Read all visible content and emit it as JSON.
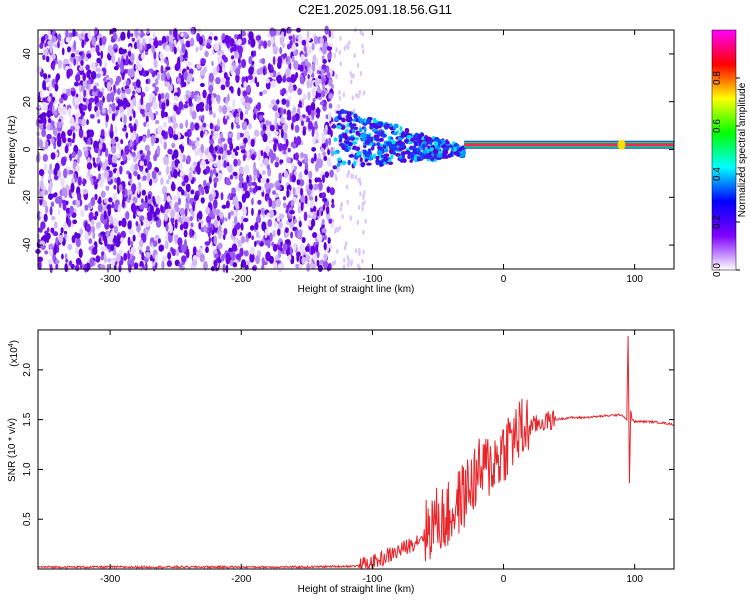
{
  "title": "C2E1.2025.091.18.56.G11",
  "chart_data": [
    {
      "type": "heatmap",
      "title": "C2E1.2025.091.18.56.G11",
      "xlabel": "Height of straight line (km)",
      "ylabel": "Frequency (Hz)",
      "xlim": [
        -355,
        130
      ],
      "ylim": [
        -50,
        50
      ],
      "xticks": [
        -300,
        -200,
        -100,
        0,
        100
      ],
      "yticks": [
        -40,
        -20,
        0,
        20,
        40
      ],
      "colorbar": {
        "label": "Normalized spectral amplitude",
        "range": [
          0,
          1
        ],
        "ticks": [
          "0.0",
          "0.2",
          "0.4",
          "0.6",
          "0.8"
        ],
        "colors": [
          "#ffffff",
          "#7f00ff",
          "#0000ff",
          "#00ffff",
          "#00ff00",
          "#ffff00",
          "#ff0000",
          "#ff00ff"
        ]
      },
      "description_features": {
        "noise_region_x": [
          -355,
          -130
        ],
        "transition_region_x": [
          -130,
          -30
        ],
        "tone_line_x": [
          -30,
          130
        ],
        "tone_frequency_hz": 2,
        "spike_x": 90
      }
    },
    {
      "type": "line",
      "xlabel": "Height of straight line (km)",
      "ylabel": "SNR (10 * v/v)",
      "y_multiplier_label": "(x10",
      "y_multiplier_exp": "4",
      "y_multiplier_close": ")",
      "xlim": [
        -355,
        130
      ],
      "ylim": [
        0,
        2.4
      ],
      "xticks": [
        -300,
        -200,
        -100,
        0,
        100
      ],
      "yticks": [
        0.5,
        1.0,
        1.5,
        2.0
      ],
      "ytick_labels": [
        "0.5",
        "1.0",
        "1.5",
        "2.0"
      ],
      "color": "#e8262a",
      "series": [
        {
          "x": [
            -355,
            -300,
            -250,
            -200,
            -150,
            -110,
            -100,
            -90,
            -80,
            -70,
            -60,
            -55,
            -50,
            -45,
            -40,
            -35,
            -30,
            -25,
            -20,
            -15,
            -10,
            -5,
            0,
            5,
            10,
            15,
            20,
            25,
            30,
            40,
            50,
            60,
            70,
            80,
            90,
            94,
            95,
            96,
            97,
            98,
            100,
            110,
            120,
            130
          ],
          "values": [
            0.02,
            0.02,
            0.02,
            0.02,
            0.02,
            0.03,
            0.06,
            0.12,
            0.18,
            0.25,
            0.35,
            0.45,
            0.5,
            0.5,
            0.55,
            0.65,
            0.75,
            0.85,
            0.95,
            1.0,
            1.05,
            1.1,
            1.2,
            1.3,
            1.35,
            1.4,
            1.43,
            1.45,
            1.48,
            1.5,
            1.52,
            1.52,
            1.53,
            1.54,
            1.55,
            1.5,
            2.35,
            0.85,
            1.6,
            1.5,
            1.48,
            1.48,
            1.47,
            1.45
          ]
        }
      ]
    }
  ]
}
